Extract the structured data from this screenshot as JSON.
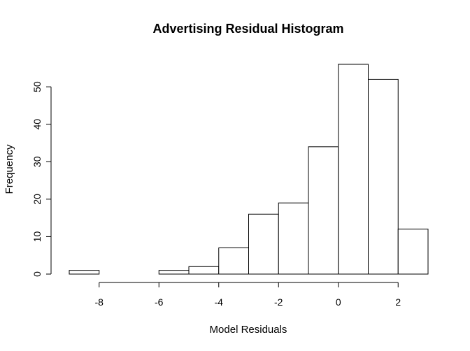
{
  "chart_data": {
    "type": "bar",
    "title": "Advertising Residual Histogram",
    "xlabel": "Model Residuals",
    "ylabel": "Frequency",
    "bins": [
      {
        "from": -9,
        "to": -8,
        "count": 1
      },
      {
        "from": -8,
        "to": -7,
        "count": 0
      },
      {
        "from": -7,
        "to": -6,
        "count": 0
      },
      {
        "from": -6,
        "to": -5,
        "count": 1
      },
      {
        "from": -5,
        "to": -4,
        "count": 2
      },
      {
        "from": -4,
        "to": -3,
        "count": 7
      },
      {
        "from": -3,
        "to": -2,
        "count": 16
      },
      {
        "from": -2,
        "to": -1,
        "count": 19
      },
      {
        "from": -1,
        "to": 0,
        "count": 34
      },
      {
        "from": 0,
        "to": 1,
        "count": 56
      },
      {
        "from": 1,
        "to": 2,
        "count": 52
      },
      {
        "from": 2,
        "to": 3,
        "count": 12
      }
    ],
    "xticks": [
      -8,
      -6,
      -4,
      -2,
      0,
      2
    ],
    "yticks": [
      0,
      10,
      20,
      30,
      40,
      50
    ],
    "xlim": [
      -9,
      3
    ],
    "ylim": [
      0,
      56
    ],
    "grid": false,
    "colors": {
      "bar_fill": "#ffffff",
      "bar_stroke": "#000000"
    }
  }
}
